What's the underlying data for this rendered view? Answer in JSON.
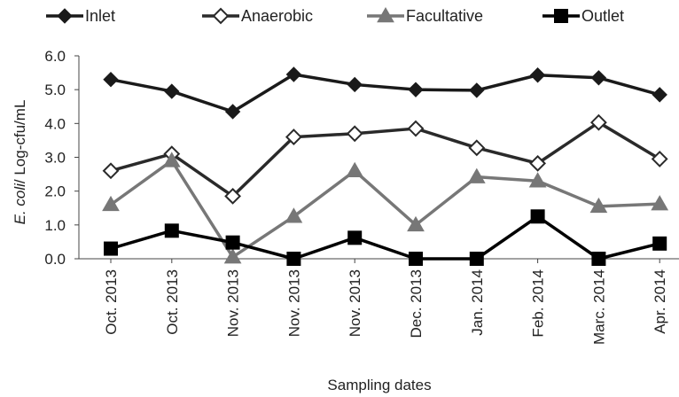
{
  "chart_data": {
    "type": "line",
    "categories": [
      "Oct. 2013",
      "Oct. 2013",
      "Nov. 2013",
      "Nov. 2013",
      "Nov. 2013",
      "Dec. 2013",
      "Jan. 2014",
      "Feb. 2014",
      "Marc. 2014",
      "Apr. 2014"
    ],
    "series": [
      {
        "name": "Inlet",
        "marker": "diamond-filled",
        "color": "#1a1a1a",
        "values": [
          5.3,
          4.95,
          4.35,
          5.45,
          5.15,
          5.0,
          4.98,
          5.43,
          5.35,
          4.85
        ]
      },
      {
        "name": "Anaerobic",
        "marker": "diamond-open",
        "color": "#2a2a2a",
        "values": [
          2.6,
          3.1,
          1.85,
          3.6,
          3.7,
          3.85,
          3.28,
          2.82,
          4.03,
          2.95
        ]
      },
      {
        "name": "Facultative",
        "marker": "triangle",
        "color": "#777777",
        "values": [
          1.6,
          2.9,
          0.05,
          1.25,
          2.6,
          1.0,
          2.42,
          2.3,
          1.55,
          1.62
        ]
      },
      {
        "name": "Outlet",
        "marker": "square",
        "color": "#000000",
        "values": [
          0.3,
          0.83,
          0.48,
          0.0,
          0.62,
          0.0,
          0.0,
          1.25,
          0.0,
          0.45
        ]
      }
    ],
    "y_ticks": [
      "0.0",
      "1.0",
      "2.0",
      "3.0",
      "4.0",
      "5.0",
      "6.0"
    ],
    "ylim": [
      0,
      6
    ],
    "ylabel_italic": "E. coli",
    "ylabel_rest": "/ Log-cfu/mL",
    "xlabel": "Sampling dates",
    "legend_position": "top",
    "grid": false
  }
}
